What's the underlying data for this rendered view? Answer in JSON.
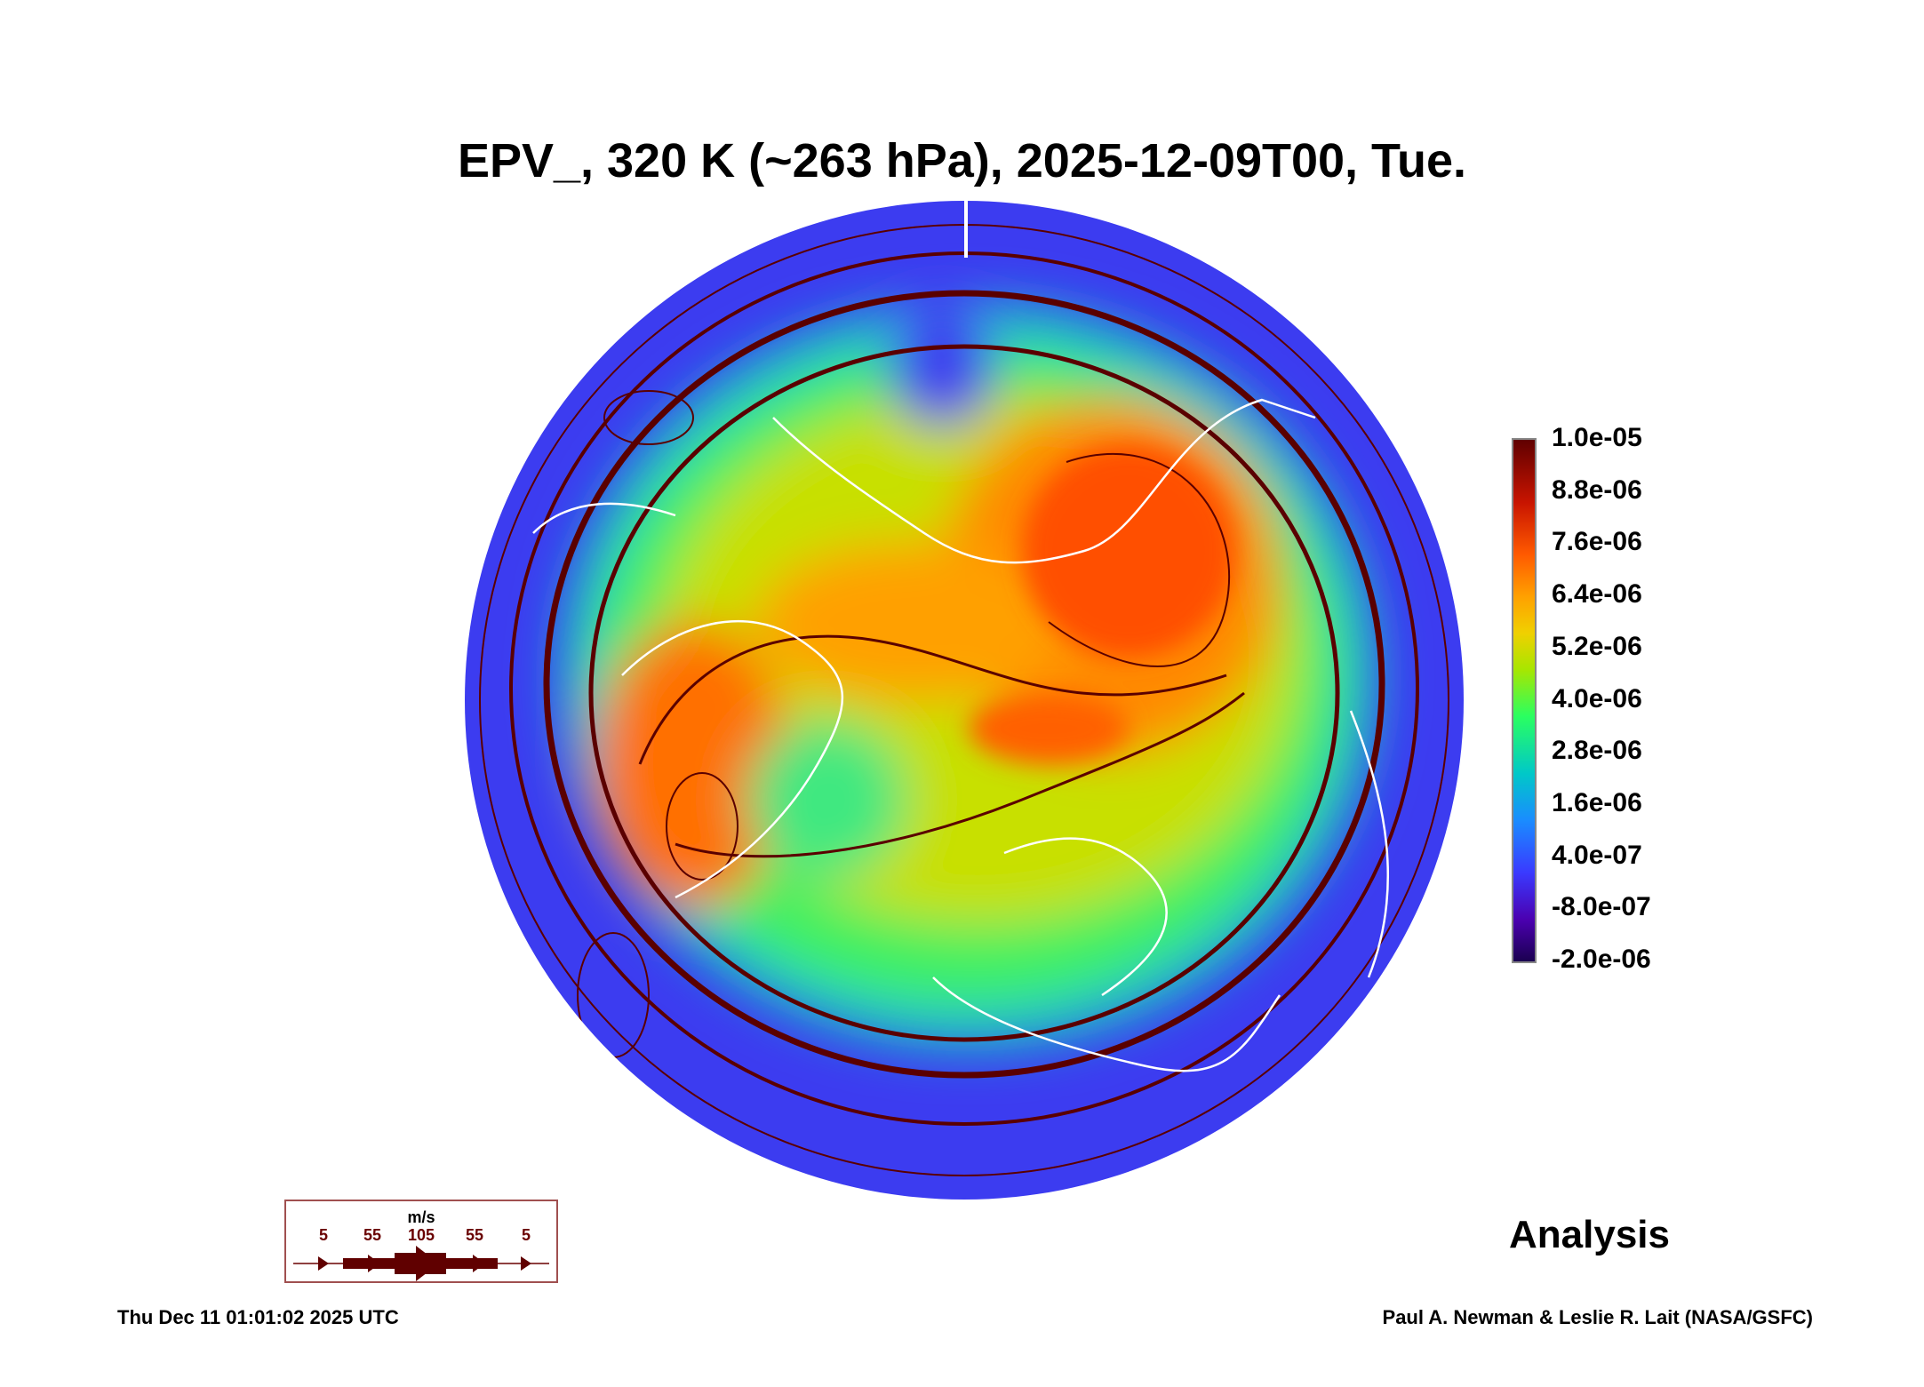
{
  "title": "EPV_, 320 K (~263 hPa), 2025-12-09T00, Tue.",
  "colorbar": {
    "labels": [
      "1.0e-05",
      "8.8e-06",
      "7.6e-06",
      "6.4e-06",
      "5.2e-06",
      "4.0e-06",
      "2.8e-06",
      "1.6e-06",
      "4.0e-07",
      "-8.0e-07",
      "-2.0e-06"
    ],
    "min": -2e-06,
    "max": 1e-05
  },
  "analysis_label": "Analysis",
  "wind_legend": {
    "unit": "m/s",
    "values": [
      "5",
      "55",
      "105",
      "55",
      "5"
    ]
  },
  "footer": {
    "timestamp": "Thu Dec 11 01:01:02 2025 UTC",
    "credit": "Paul A. Newman & Leslie R. Lait (NASA/GSFC)"
  },
  "colors": {
    "streamline": "#5a0000",
    "ocean_low": "#3c3cf0",
    "coast": "#ffffff"
  }
}
